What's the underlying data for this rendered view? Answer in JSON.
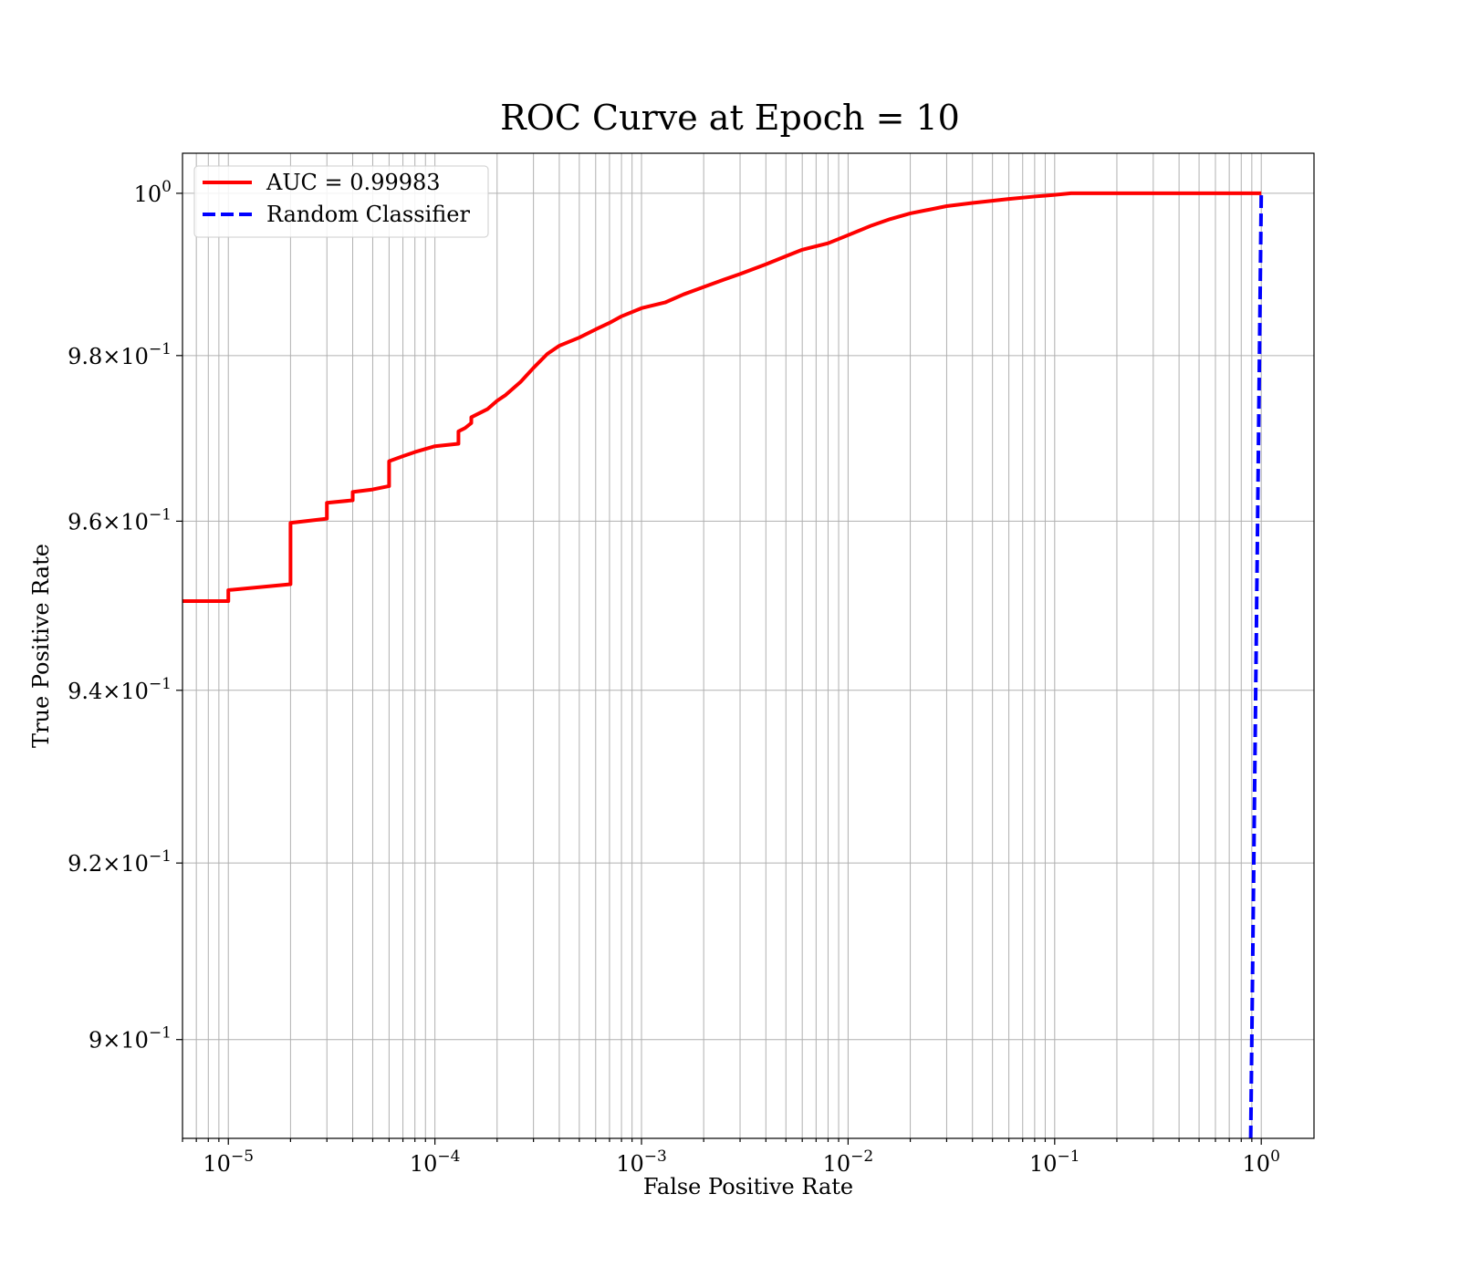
{
  "chart_data": {
    "type": "line",
    "title": "ROC Curve at Epoch = 10",
    "xlabel": "False Positive Rate",
    "ylabel": "True Positive Rate",
    "xscale": "log",
    "yscale": "log",
    "xlim": [
      6e-06,
      1.8
    ],
    "ylim": [
      0.889,
      1.005
    ],
    "x_ticks": [
      {
        "value": 1e-05,
        "base": "10",
        "exp": "−5"
      },
      {
        "value": 0.0001,
        "base": "10",
        "exp": "−4"
      },
      {
        "value": 0.001,
        "base": "10",
        "exp": "−3"
      },
      {
        "value": 0.01,
        "base": "10",
        "exp": "−2"
      },
      {
        "value": 0.1,
        "base": "10",
        "exp": "−1"
      },
      {
        "value": 1,
        "base": "10",
        "exp": "0"
      }
    ],
    "y_ticks": [
      {
        "value": 1.0,
        "base": "10",
        "exp": "0"
      },
      {
        "value": 0.98,
        "base": "9.8×10",
        "exp": "−1"
      },
      {
        "value": 0.96,
        "base": "9.6×10",
        "exp": "−1"
      },
      {
        "value": 0.94,
        "base": "9.4×10",
        "exp": "−1"
      },
      {
        "value": 0.92,
        "base": "9.2×10",
        "exp": "−1"
      },
      {
        "value": 0.9,
        "base": "9×10",
        "exp": "−1"
      }
    ],
    "grid": true,
    "legend_position": "top-left",
    "series": [
      {
        "name": "AUC = 0.99983",
        "color": "#ff0000",
        "style": "solid",
        "x": [
          6e-06,
          1e-05,
          1e-05,
          2e-05,
          2e-05,
          3e-05,
          3e-05,
          4e-05,
          4e-05,
          5e-05,
          6e-05,
          6e-05,
          7e-05,
          8e-05,
          0.0001,
          0.00013,
          0.00013,
          0.00014,
          0.00015,
          0.00015,
          0.00018,
          0.0002,
          0.00022,
          0.00026,
          0.0003,
          0.00035,
          0.0004,
          0.0005,
          0.0006,
          0.0007,
          0.0008,
          0.001,
          0.0013,
          0.0016,
          0.002,
          0.0025,
          0.003,
          0.004,
          0.005,
          0.006,
          0.008,
          0.01,
          0.013,
          0.016,
          0.02,
          0.03,
          0.04,
          0.06,
          0.08,
          0.1,
          0.12,
          1.0
        ],
        "y": [
          0.9505,
          0.9505,
          0.9518,
          0.9525,
          0.9598,
          0.9603,
          0.9622,
          0.9625,
          0.9635,
          0.9638,
          0.9642,
          0.9672,
          0.9678,
          0.9683,
          0.969,
          0.9693,
          0.9708,
          0.9712,
          0.9718,
          0.9725,
          0.9735,
          0.9745,
          0.9752,
          0.9768,
          0.9785,
          0.9802,
          0.9812,
          0.9822,
          0.9832,
          0.984,
          0.9848,
          0.9858,
          0.9865,
          0.9875,
          0.9884,
          0.9893,
          0.99,
          0.9912,
          0.9922,
          0.993,
          0.9938,
          0.9948,
          0.996,
          0.9968,
          0.9975,
          0.9984,
          0.9988,
          0.9993,
          0.9996,
          0.9998,
          1.0,
          1.0
        ]
      },
      {
        "name": "Random Classifier",
        "color": "#0000ff",
        "style": "dashed",
        "x": [
          0.889,
          1.0
        ],
        "y": [
          0.889,
          1.0
        ]
      }
    ]
  }
}
